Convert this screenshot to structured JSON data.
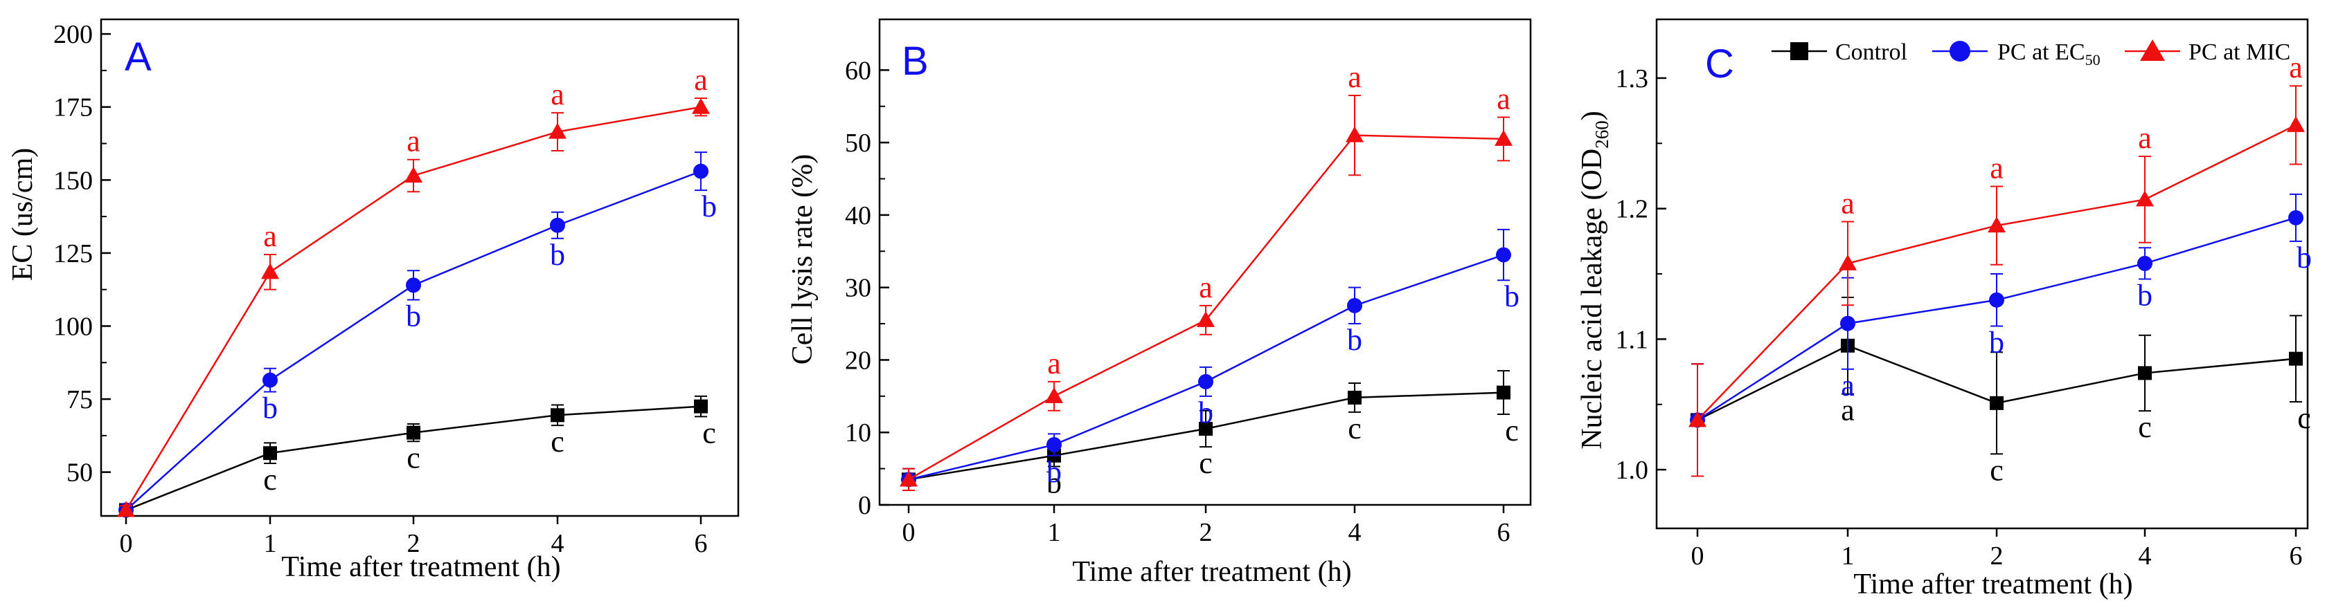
{
  "styles": {
    "control": {
      "color": "#000000",
      "marker": "square"
    },
    "ec50": {
      "color": "#1010ee",
      "marker": "circle"
    },
    "mic": {
      "color": "#ee1010",
      "marker": "triangle"
    },
    "axis_color": "#000000"
  },
  "legend": {
    "control": "Control",
    "ec50_prefix": "PC at EC",
    "ec50_sub": "50",
    "mic": "PC at MIC"
  },
  "chart_data": [
    {
      "panel": "A",
      "type": "line",
      "xlabel": "Time after treatment (h)",
      "ylabel": "EC (us/cm)",
      "x_ticks": [
        "0",
        "1",
        "2",
        "4",
        "6"
      ],
      "y_ticks": [
        50,
        75,
        100,
        125,
        150,
        175,
        200
      ],
      "ylim": [
        35,
        205
      ],
      "series": [
        {
          "key": "control",
          "name": "Control",
          "values": [
            37,
            56.5,
            63.5,
            69.5,
            72.5
          ],
          "errors": [
            1.5,
            3.5,
            3,
            3.5,
            3.5
          ],
          "letters": [
            "",
            "c",
            "c",
            "c",
            "c"
          ]
        },
        {
          "key": "ec50",
          "name": "PC at EC50",
          "values": [
            37,
            81.5,
            114,
            134.5,
            153
          ],
          "errors": [
            1.5,
            4,
            5,
            4.5,
            6.5
          ],
          "letters": [
            "",
            "b",
            "b",
            "b",
            "b"
          ]
        },
        {
          "key": "mic",
          "name": "PC at MIC",
          "values": [
            37,
            118.5,
            151.5,
            166.5,
            175
          ],
          "errors": [
            1.5,
            6,
            5.5,
            6.5,
            3
          ],
          "letters": [
            "",
            "a",
            "a",
            "a",
            "a"
          ]
        }
      ]
    },
    {
      "panel": "B",
      "type": "line",
      "xlabel": "Time after treatment (h)",
      "ylabel": "Cell lysis rate (%)",
      "x_ticks": [
        "0",
        "1",
        "2",
        "4",
        "6"
      ],
      "y_ticks": [
        0,
        10,
        20,
        30,
        40,
        50,
        60
      ],
      "ylim": [
        0,
        67
      ],
      "series": [
        {
          "key": "control",
          "name": "Control",
          "values": [
            3.5,
            6.8,
            10.5,
            14.8,
            15.5
          ],
          "errors": [
            1.5,
            1.5,
            2.5,
            2,
            3
          ],
          "letters": [
            "",
            "b",
            "c",
            "c",
            "c"
          ]
        },
        {
          "key": "ec50",
          "name": "PC at EC50",
          "values": [
            3.5,
            8.3,
            17,
            27.5,
            34.5
          ],
          "errors": [
            1.5,
            1.5,
            2,
            2.5,
            3.5
          ],
          "letters": [
            "",
            "b",
            "b",
            "b",
            "b"
          ]
        },
        {
          "key": "mic",
          "name": "PC at MIC",
          "values": [
            3.5,
            15,
            25.5,
            51,
            50.5
          ],
          "errors": [
            1.5,
            2,
            2,
            5.5,
            3
          ],
          "letters": [
            "",
            "a",
            "a",
            "a",
            "a"
          ]
        }
      ]
    },
    {
      "panel": "C",
      "type": "line",
      "xlabel": "Time after treatment (h)",
      "ylabel": "Nucleic acid leakage (OD260)",
      "x_ticks": [
        "0",
        "1",
        "2",
        "4",
        "6"
      ],
      "y_ticks": [
        1.0,
        1.1,
        1.2,
        1.3
      ],
      "ylim": [
        0.955,
        1.345
      ],
      "series": [
        {
          "key": "control",
          "name": "Control",
          "values": [
            1.038,
            1.095,
            1.051,
            1.074,
            1.085
          ],
          "errors": [
            0.043,
            0.037,
            0.039,
            0.029,
            0.033
          ],
          "letters": [
            "",
            "a",
            "c",
            "c",
            "c"
          ]
        },
        {
          "key": "ec50",
          "name": "PC at EC50",
          "values": [
            1.038,
            1.112,
            1.13,
            1.158,
            1.193
          ],
          "errors": [
            0.043,
            0.035,
            0.02,
            0.012,
            0.018
          ],
          "letters": [
            "",
            "a",
            "b",
            "b",
            "b"
          ]
        },
        {
          "key": "mic",
          "name": "PC at MIC",
          "values": [
            1.038,
            1.158,
            1.187,
            1.207,
            1.264
          ],
          "errors": [
            0.043,
            0.032,
            0.03,
            0.033,
            0.03
          ],
          "letters": [
            "",
            "a",
            "a",
            "a",
            "a"
          ]
        }
      ]
    }
  ]
}
